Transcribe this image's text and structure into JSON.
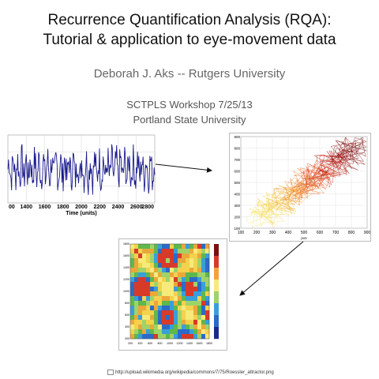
{
  "slide": {
    "title_line1": "Recurrence Quantification Analysis (RQA):",
    "title_line2": "Tutorial & application to eye-movement data",
    "author": "Deborah J. Aks -- Rutgers University",
    "event_line1": "SCTPLS  Workshop 7/25/13",
    "event_line2": "Portland State University",
    "citation": "http://upload.wikimedia.org/wikipedia/commons/7/75/Roessler_attractor.png"
  },
  "colors": {
    "series": "#1a1a8c",
    "arrow": "#111111"
  },
  "chart_data": [
    {
      "type": "line",
      "xlabel": "Time (units)",
      "x_ticks": [
        "00",
        "1400",
        "1600",
        "1800",
        "2000",
        "2200",
        "2400",
        "2600",
        "2800"
      ],
      "xlim": [
        1200,
        2800
      ],
      "series_color": "#1a1a8c"
    },
    {
      "type": "scatter",
      "xlabel": "pos",
      "x_ticks": [
        "100",
        "200",
        "300",
        "400",
        "500",
        "600",
        "700",
        "800",
        "900"
      ],
      "y_ticks": [
        "100",
        "200",
        "300",
        "400",
        "500",
        "600",
        "700",
        "800",
        "900"
      ],
      "xlim": [
        100,
        900
      ],
      "ylim": [
        100,
        900
      ]
    },
    {
      "type": "heatmap",
      "x_ticks": [
        "200",
        "400",
        "600",
        "800",
        "1000",
        "1200",
        "1400",
        "1600",
        "1800"
      ],
      "y_ticks": [
        "200",
        "400",
        "600",
        "800",
        "1000",
        "1200",
        "1400",
        "1600",
        "1800"
      ]
    }
  ]
}
